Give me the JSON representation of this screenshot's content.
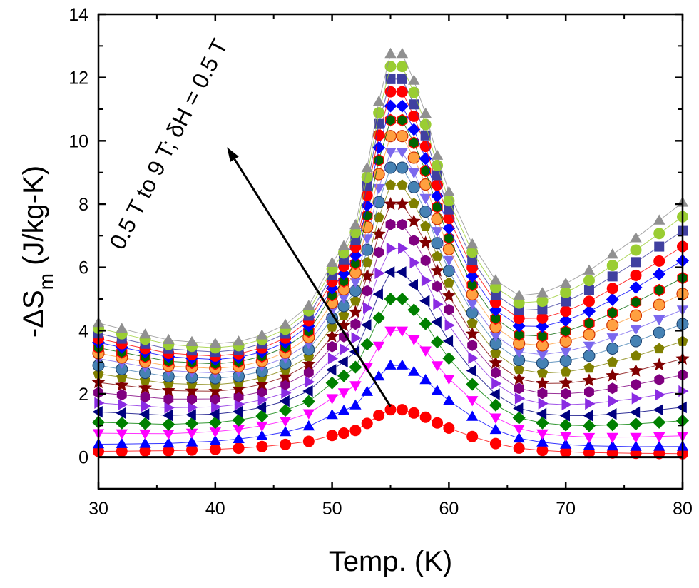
{
  "chart_data": {
    "type": "scatter",
    "xlabel": "Temp. (K)",
    "ylabel_parts": {
      "prefix": "-ΔS",
      "subscript": "m",
      "suffix": "(J/kg-K)"
    },
    "xlim": [
      30,
      80
    ],
    "ylim": [
      -1,
      14
    ],
    "x_ticks": [
      30,
      40,
      50,
      60,
      70,
      80
    ],
    "y_ticks": [
      0,
      2,
      4,
      6,
      8,
      10,
      12,
      14
    ],
    "grid": false,
    "legend": "none",
    "annotation": {
      "text": "0.5 T to 9 T; δH = 0.5 T",
      "arrow_from": [
        55,
        1.6
      ],
      "arrow_to": [
        41,
        9.8
      ]
    },
    "x": [
      30,
      32,
      34,
      36,
      38,
      40,
      42,
      44,
      46,
      48,
      50,
      51,
      52,
      53,
      54,
      55,
      56,
      57,
      58,
      59,
      60,
      62,
      64,
      66,
      68,
      70,
      72,
      74,
      76,
      78,
      80
    ],
    "base_profile": [
      0.06,
      0.07,
      0.08,
      0.09,
      0.11,
      0.13,
      0.16,
      0.2,
      0.25,
      0.32,
      0.45,
      0.5,
      0.56,
      0.71,
      0.88,
      1.0,
      1.0,
      0.93,
      0.84,
      0.72,
      0.61,
      0.43,
      0.28,
      0.18,
      0.13,
      0.1,
      0.08,
      0.07,
      0.06,
      0.055,
      0.05
    ],
    "zero_line_y": 0,
    "series": [
      {
        "peak": 1.5,
        "low_end": 0.1,
        "high_end": 0.04,
        "color": "#ff0000",
        "marker": "circle"
      },
      {
        "peak": 2.9,
        "low_end": 0.25,
        "high_end": 0.2,
        "color": "#0000ff",
        "marker": "triangle-up"
      },
      {
        "peak": 4.0,
        "low_end": 0.55,
        "high_end": 0.5,
        "color": "#ff00ff",
        "marker": "triangle-down"
      },
      {
        "peak": 5.0,
        "low_end": 0.85,
        "high_end": 0.95,
        "color": "#008000",
        "marker": "diamond"
      },
      {
        "peak": 5.85,
        "low_end": 1.15,
        "high_end": 1.35,
        "color": "#000080",
        "marker": "triangle-left"
      },
      {
        "peak": 6.6,
        "low_end": 1.4,
        "high_end": 1.85,
        "color": "#8a2be2",
        "marker": "triangle-right"
      },
      {
        "peak": 7.35,
        "low_end": 1.7,
        "high_end": 2.35,
        "color": "#800080",
        "marker": "hexagon"
      },
      {
        "peak": 8.0,
        "low_end": 2.0,
        "high_end": 2.85,
        "color": "#800000",
        "marker": "star"
      },
      {
        "peak": 8.6,
        "low_end": 2.25,
        "high_end": 3.4,
        "color": "#808000",
        "marker": "pentagon"
      },
      {
        "peak": 9.15,
        "low_end": 2.5,
        "high_end": 3.95,
        "color": "#4682b4",
        "marker": "sphere"
      },
      {
        "peak": 9.65,
        "low_end": 2.7,
        "high_end": 4.4,
        "color": "#7b68ee",
        "marker": "triangle-down"
      },
      {
        "peak": 10.15,
        "low_end": 2.85,
        "high_end": 4.9,
        "color": "#ffa040",
        "marker": "circle-outlined"
      },
      {
        "peak": 10.65,
        "low_end": 3.0,
        "high_end": 5.4,
        "color": "#006400",
        "marker": "hexagon-outlined"
      },
      {
        "peak": 11.1,
        "low_end": 3.15,
        "high_end": 5.95,
        "color": "#0000ff",
        "marker": "diamond"
      },
      {
        "peak": 11.55,
        "low_end": 3.25,
        "high_end": 6.4,
        "color": "#ff0000",
        "marker": "circle"
      },
      {
        "peak": 11.95,
        "low_end": 3.4,
        "high_end": 6.9,
        "color": "#4040a0",
        "marker": "square"
      },
      {
        "peak": 12.35,
        "low_end": 3.55,
        "high_end": 7.35,
        "color": "#9acd32",
        "marker": "circle"
      },
      {
        "peak": 12.75,
        "low_end": 3.7,
        "high_end": 7.8,
        "color": "#909090",
        "marker": "triangle-up"
      }
    ]
  }
}
